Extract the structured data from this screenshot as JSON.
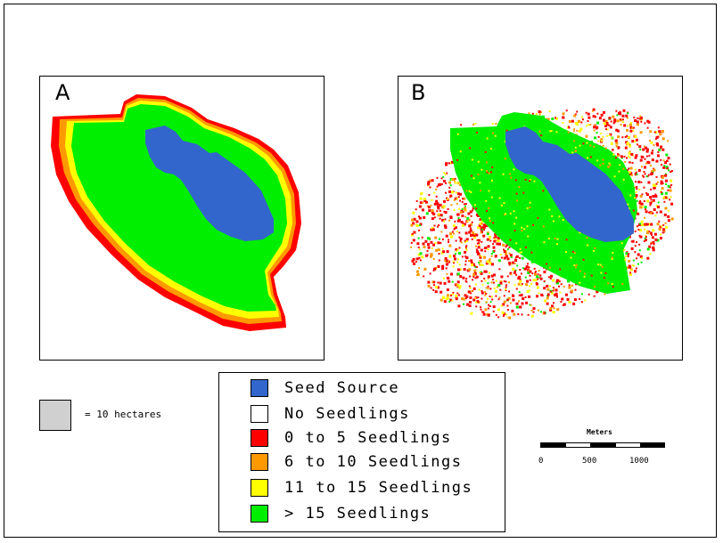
{
  "panels": [
    {
      "label": "A",
      "pattern": "regular-concentric-bands"
    },
    {
      "label": "B",
      "pattern": "scattered-stochastic"
    }
  ],
  "colors": {
    "seed_source": "#3366cc",
    "no_seedlings": "#ffffff",
    "class_0_5": "#ff0000",
    "class_6_10": "#ff9900",
    "class_11_15": "#ffff00",
    "class_gt_15": "#00ee00",
    "area_reference": "#d0d0d0"
  },
  "legend": {
    "items": [
      {
        "label": "Seed Source",
        "color": "#3366cc"
      },
      {
        "label": "No Seedlings",
        "color": "#ffffff"
      },
      {
        "label": "0 to 5 Seedlings",
        "color": "#ff0000"
      },
      {
        "label": "6 to 10 Seedlings",
        "color": "#ff9900"
      },
      {
        "label": "11 to 15 Seedlings",
        "color": "#ffff00"
      },
      {
        "label": "> 15 Seedlings",
        "color": "#00ee00"
      }
    ]
  },
  "area_reference": {
    "label": "= 10 hectares"
  },
  "scale_bar": {
    "title": "Meters",
    "ticks": [
      "0",
      "500",
      "1000"
    ]
  }
}
